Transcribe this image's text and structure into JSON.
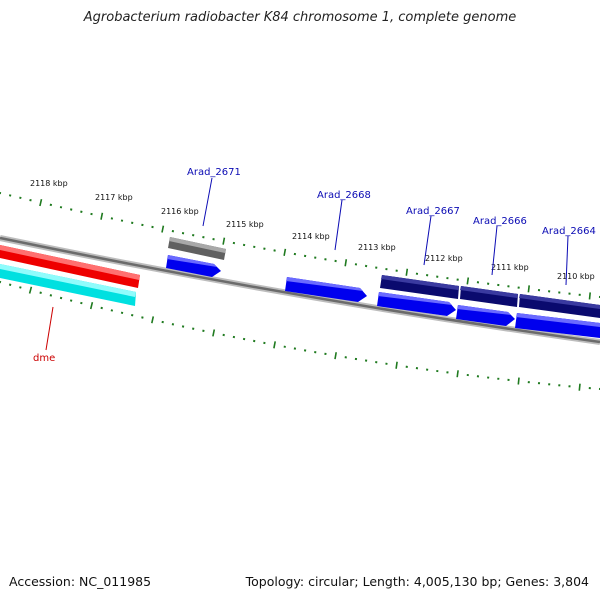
{
  "title": "Agrobacterium radiobacter K84 chromosome 1, complete genome",
  "footer": {
    "accession": "Accession: NC_011985",
    "stats": "Topology: circular; Length: 4,005,130 bp; Genes: 3,804"
  },
  "scale_labels": [
    "2118 kbp",
    "2117 kbp",
    "2116 kbp",
    "2115 kbp",
    "2114 kbp",
    "2113 kbp",
    "2112 kbp",
    "2111 kbp",
    "2110 kbp"
  ],
  "gene_labels": [
    "Arad_2671",
    "Arad_2668",
    "Arad_2667",
    "Arad_2666",
    "Arad_2664"
  ],
  "feature_labels": [
    "dme"
  ],
  "colors": {
    "backbone": "#7a7a7a",
    "tick": "#1f7a1f",
    "gene_blue": "#0000ee",
    "gene_navy": "#0a0a6e",
    "gene_gray": "#606060",
    "feature_red": "#ee0000",
    "feature_cyan": "#00e5e5",
    "label_blue": "#0b0bb4",
    "label_red": "#cc0000"
  }
}
